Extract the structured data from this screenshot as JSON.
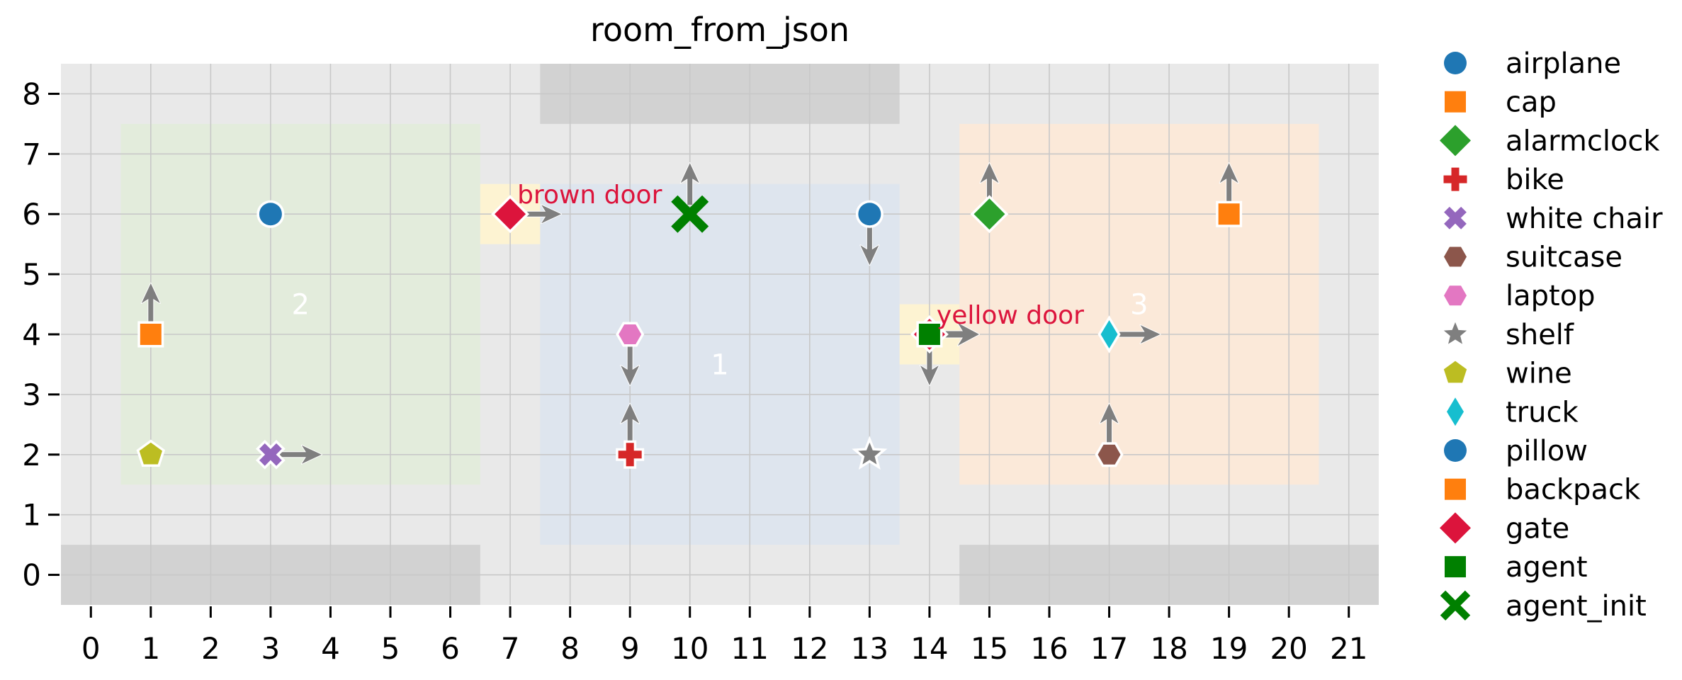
{
  "title": "room_from_json",
  "chart_data": {
    "type": "scatter",
    "title": "room_from_json",
    "xlim": [
      -0.5,
      21.5
    ],
    "ylim": [
      -0.5,
      8.5
    ],
    "xticks": [
      0,
      1,
      2,
      3,
      4,
      5,
      6,
      7,
      8,
      9,
      10,
      11,
      12,
      13,
      14,
      15,
      16,
      17,
      18,
      19,
      20,
      21
    ],
    "yticks": [
      0,
      1,
      2,
      3,
      4,
      5,
      6,
      7,
      8
    ],
    "grid": true,
    "legend_position": "right-outside",
    "styles": {
      "figure_bg": "#ffffff",
      "plot_bg": "#e9e9e9",
      "wall_band": "#d2d2d2",
      "grid_color": "#c8c8c8",
      "arrow_color": "#7f7f7f",
      "marker_edge": "#ffffff",
      "door_cell": "#fdf3d2",
      "door_text": "#dc143c",
      "room_label_text": "#ffffff",
      "tick_text": "#000000",
      "title_text": "#000000"
    },
    "rooms": [
      {
        "label": "2",
        "x0": 0.5,
        "y0": 1.5,
        "x1": 6.5,
        "y1": 7.5,
        "color": "#e3ecdc",
        "label_x": 3.5,
        "label_y": 4.5
      },
      {
        "label": "1",
        "x0": 7.5,
        "y0": 0.5,
        "x1": 13.5,
        "y1": 6.5,
        "color": "#dee5ee",
        "label_x": 10.5,
        "label_y": 3.5
      },
      {
        "label": "3",
        "x0": 14.5,
        "y0": 1.5,
        "x1": 20.5,
        "y1": 7.5,
        "color": "#fbe9d9",
        "label_x": 17.5,
        "label_y": 4.5
      }
    ],
    "wall_bands": [
      {
        "x0": 7.5,
        "y0": 7.5,
        "x1": 13.5,
        "y1": 8.5
      },
      {
        "x0": -0.5,
        "y0": -0.5,
        "x1": 6.5,
        "y1": 0.5
      },
      {
        "x0": 14.5,
        "y0": -0.5,
        "x1": 21.5,
        "y1": 0.5
      }
    ],
    "doors": [
      {
        "label": "brown door",
        "x": 7,
        "y": 6
      },
      {
        "label": "yellow door",
        "x": 14,
        "y": 4
      }
    ],
    "objects": [
      {
        "name": "airplane",
        "x": 3,
        "y": 6,
        "marker": "circle",
        "color": "#1f77b4",
        "arrow": null
      },
      {
        "name": "cap",
        "x": 1,
        "y": 4,
        "marker": "square",
        "color": "#ff7f0e",
        "arrow": "up"
      },
      {
        "name": "alarmclock",
        "x": 15,
        "y": 6,
        "marker": "diamond",
        "color": "#2ca02c",
        "arrow": "up"
      },
      {
        "name": "bike",
        "x": 9,
        "y": 2,
        "marker": "plus",
        "color": "#d62728",
        "arrow": "up"
      },
      {
        "name": "white chair",
        "x": 3,
        "y": 2,
        "marker": "x",
        "color": "#9467bd",
        "arrow": "right"
      },
      {
        "name": "suitcase",
        "x": 17,
        "y": 2,
        "marker": "hexagon",
        "color": "#8c564b",
        "arrow": "up"
      },
      {
        "name": "laptop",
        "x": 9,
        "y": 4,
        "marker": "hexagon",
        "color": "#e377c2",
        "arrow": "down"
      },
      {
        "name": "shelf",
        "x": 13,
        "y": 2,
        "marker": "star",
        "color": "#7f7f7f",
        "arrow": null
      },
      {
        "name": "wine",
        "x": 1,
        "y": 2,
        "marker": "pentagon",
        "color": "#bcbd22",
        "arrow": null
      },
      {
        "name": "truck",
        "x": 17,
        "y": 4,
        "marker": "thin-diamond",
        "color": "#17becf",
        "arrow": "right"
      },
      {
        "name": "pillow",
        "x": 13,
        "y": 6,
        "marker": "circle",
        "color": "#1f77b4",
        "arrow": "down"
      },
      {
        "name": "backpack",
        "x": 19,
        "y": 6,
        "marker": "square",
        "color": "#ff7f0e",
        "arrow": "up"
      },
      {
        "name": "gate",
        "x": 7,
        "y": 6,
        "marker": "diamond",
        "color": "#dc143c",
        "arrow": "right"
      },
      {
        "name": "gate",
        "x": 14,
        "y": 4,
        "marker": "diamond",
        "color": "#dc143c",
        "arrow": "down"
      },
      {
        "name": "agent",
        "x": 14,
        "y": 4,
        "marker": "square",
        "color": "#008000",
        "arrow": "right",
        "big_arrow": true
      },
      {
        "name": "agent_init",
        "x": 10,
        "y": 6,
        "marker": "x-large",
        "color": "#008000",
        "arrow": "up",
        "edge": false
      }
    ],
    "legend": [
      {
        "label": "airplane",
        "marker": "circle",
        "color": "#1f77b4"
      },
      {
        "label": "cap",
        "marker": "square",
        "color": "#ff7f0e"
      },
      {
        "label": "alarmclock",
        "marker": "diamond",
        "color": "#2ca02c"
      },
      {
        "label": "bike",
        "marker": "plus",
        "color": "#d62728"
      },
      {
        "label": "white chair",
        "marker": "x",
        "color": "#9467bd"
      },
      {
        "label": "suitcase",
        "marker": "hexagon",
        "color": "#8c564b"
      },
      {
        "label": "laptop",
        "marker": "hexagon",
        "color": "#e377c2"
      },
      {
        "label": "shelf",
        "marker": "star",
        "color": "#7f7f7f"
      },
      {
        "label": "wine",
        "marker": "pentagon",
        "color": "#bcbd22"
      },
      {
        "label": "truck",
        "marker": "thin-diamond",
        "color": "#17becf"
      },
      {
        "label": "pillow",
        "marker": "circle",
        "color": "#1f77b4"
      },
      {
        "label": "backpack",
        "marker": "square",
        "color": "#ff7f0e"
      },
      {
        "label": "gate",
        "marker": "diamond",
        "color": "#dc143c"
      },
      {
        "label": "agent",
        "marker": "square",
        "color": "#008000"
      },
      {
        "label": "agent_init",
        "marker": "x-large",
        "color": "#008000"
      }
    ]
  }
}
